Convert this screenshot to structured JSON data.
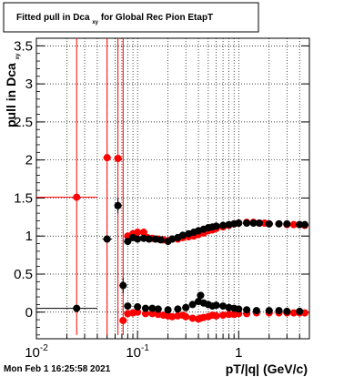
{
  "title_parts": [
    "Fitted pull in Dca",
    "xy",
    " for Global Rec Pion EtapT"
  ],
  "timestamp": "Mon Feb  1 16:25:58 2021",
  "chart_data": {
    "type": "scatter",
    "xlabel": "pT/|q| (GeV/c)",
    "ylabel_parts": [
      "pull in Dca",
      "xy"
    ],
    "xscale": "log",
    "xlim": [
      0.01,
      5.0
    ],
    "ylim": [
      -0.35,
      3.6
    ],
    "x_ticks": [
      {
        "value": 0.01,
        "base": "10",
        "exp": "-2"
      },
      {
        "value": 0.1,
        "base": "10",
        "exp": "-1"
      },
      {
        "value": 1,
        "base": "1",
        "exp": ""
      }
    ],
    "y_ticks": [
      {
        "value": 0,
        "label": "0"
      },
      {
        "value": 0.5,
        "label": "0.5"
      },
      {
        "value": 1,
        "label": "1"
      },
      {
        "value": 1.5,
        "label": "1.5"
      },
      {
        "value": 2,
        "label": "2"
      },
      {
        "value": 2.5,
        "label": "2.5"
      },
      {
        "value": 3,
        "label": "3"
      },
      {
        "value": 3.5,
        "label": "3.5"
      }
    ],
    "grid": true,
    "colors": {
      "red": "#ff0000",
      "black": "#000000"
    },
    "series": [
      {
        "color": "#ff0000",
        "points": [
          [
            0.025,
            1.51
          ],
          [
            0.05,
            2.03
          ],
          [
            0.064,
            2.02
          ],
          [
            0.072,
            -0.11
          ],
          [
            0.08,
            1.0
          ],
          [
            0.09,
            1.03
          ],
          [
            0.1,
            1.05
          ],
          [
            0.115,
            1.05
          ],
          [
            0.125,
            0.98
          ],
          [
            0.14,
            0.97
          ],
          [
            0.16,
            0.96
          ],
          [
            0.18,
            0.95
          ],
          [
            0.2,
            0.94
          ],
          [
            0.22,
            0.96
          ],
          [
            0.25,
            0.96
          ],
          [
            0.28,
            0.98
          ],
          [
            0.32,
            0.99
          ],
          [
            0.36,
            1.0
          ],
          [
            0.4,
            1.02
          ],
          [
            0.45,
            1.04
          ],
          [
            0.5,
            1.07
          ],
          [
            0.55,
            1.08
          ],
          [
            0.6,
            1.1
          ],
          [
            0.7,
            1.12
          ],
          [
            0.8,
            1.14
          ],
          [
            0.9,
            1.16
          ],
          [
            1.0,
            1.17
          ],
          [
            1.2,
            1.18
          ],
          [
            1.4,
            1.18
          ],
          [
            1.6,
            1.17
          ],
          [
            1.8,
            1.17
          ],
          [
            2.0,
            1.16
          ],
          [
            2.5,
            1.16
          ],
          [
            3.0,
            1.15
          ],
          [
            3.5,
            1.15
          ],
          [
            4.0,
            1.15
          ],
          [
            4.5,
            1.14
          ],
          [
            0.08,
            -0.02
          ],
          [
            0.09,
            -0.01
          ],
          [
            0.1,
            0.0
          ],
          [
            0.12,
            -0.02
          ],
          [
            0.14,
            -0.02
          ],
          [
            0.16,
            -0.03
          ],
          [
            0.18,
            -0.04
          ],
          [
            0.2,
            -0.05
          ],
          [
            0.22,
            -0.06
          ],
          [
            0.25,
            -0.05
          ],
          [
            0.28,
            -0.04
          ],
          [
            0.3,
            -0.06
          ],
          [
            0.35,
            -0.08
          ],
          [
            0.4,
            -0.09
          ],
          [
            0.42,
            -0.08
          ],
          [
            0.45,
            -0.07
          ],
          [
            0.5,
            -0.06
          ],
          [
            0.55,
            -0.04
          ],
          [
            0.6,
            -0.05
          ],
          [
            0.7,
            -0.04
          ],
          [
            0.8,
            -0.03
          ],
          [
            0.9,
            -0.03
          ],
          [
            1.0,
            -0.02
          ],
          [
            1.2,
            -0.02
          ],
          [
            1.5,
            -0.01
          ],
          [
            2.0,
            -0.01
          ],
          [
            2.5,
            -0.01
          ],
          [
            3.0,
            -0.01
          ],
          [
            3.5,
            -0.01
          ],
          [
            4.0,
            -0.01
          ],
          [
            4.5,
            -0.01
          ]
        ]
      },
      {
        "color": "#000000",
        "points": [
          [
            0.025,
            0.05
          ],
          [
            0.05,
            0.96
          ],
          [
            0.064,
            1.4
          ],
          [
            0.072,
            0.35
          ],
          [
            0.08,
            0.93
          ],
          [
            0.09,
            0.98
          ],
          [
            0.1,
            0.96
          ],
          [
            0.115,
            0.97
          ],
          [
            0.13,
            0.96
          ],
          [
            0.15,
            0.96
          ],
          [
            0.17,
            0.95
          ],
          [
            0.2,
            0.93
          ],
          [
            0.22,
            0.96
          ],
          [
            0.25,
            0.98
          ],
          [
            0.28,
            1.01
          ],
          [
            0.32,
            1.03
          ],
          [
            0.36,
            1.05
          ],
          [
            0.4,
            1.07
          ],
          [
            0.45,
            1.09
          ],
          [
            0.5,
            1.11
          ],
          [
            0.55,
            1.12
          ],
          [
            0.6,
            1.13
          ],
          [
            0.7,
            1.14
          ],
          [
            0.8,
            1.15
          ],
          [
            0.9,
            1.16
          ],
          [
            1.0,
            1.17
          ],
          [
            1.2,
            1.17
          ],
          [
            1.4,
            1.17
          ],
          [
            1.6,
            1.17
          ],
          [
            2.0,
            1.16
          ],
          [
            2.5,
            1.16
          ],
          [
            3.0,
            1.16
          ],
          [
            4.0,
            1.15
          ],
          [
            4.5,
            1.15
          ],
          [
            0.08,
            0.08
          ],
          [
            0.1,
            0.07
          ],
          [
            0.12,
            0.05
          ],
          [
            0.14,
            0.05
          ],
          [
            0.16,
            0.04
          ],
          [
            0.2,
            0.03
          ],
          [
            0.25,
            0.04
          ],
          [
            0.3,
            0.06
          ],
          [
            0.35,
            0.1
          ],
          [
            0.4,
            0.14
          ],
          [
            0.42,
            0.22
          ],
          [
            0.45,
            0.12
          ],
          [
            0.5,
            0.1
          ],
          [
            0.55,
            0.08
          ],
          [
            0.6,
            0.09
          ],
          [
            0.7,
            0.08
          ],
          [
            0.8,
            0.06
          ],
          [
            0.9,
            0.05
          ],
          [
            1.0,
            0.04
          ],
          [
            1.2,
            0.03
          ],
          [
            1.5,
            0.02
          ],
          [
            2.0,
            0.02
          ],
          [
            2.5,
            0.02
          ],
          [
            3.0,
            0.01
          ],
          [
            4.0,
            0.01
          ]
        ]
      }
    ],
    "error_bars": [
      {
        "x": 0.025,
        "y": 1.51,
        "xlow": 0.01,
        "xhigh": 0.04,
        "ylow": -0.3,
        "yhigh": 3.6,
        "color": "#ff0000"
      },
      {
        "x": 0.025,
        "y": 0.05,
        "xlow": 0.01,
        "xhigh": 0.04,
        "ylow": 0.05,
        "yhigh": 0.05,
        "color": "#000000"
      },
      {
        "x": 0.05,
        "y": 2.03,
        "xlow": 0.046,
        "xhigh": 0.055,
        "ylow": -0.3,
        "yhigh": 3.6,
        "color": "#ff0000"
      },
      {
        "x": 0.05,
        "y": 0.96,
        "xlow": 0.045,
        "xhigh": 0.056,
        "ylow": 0.96,
        "yhigh": 0.96,
        "color": "#000000"
      },
      {
        "x": 0.064,
        "y": 2.02,
        "xlow": 0.06,
        "xhigh": 0.068,
        "ylow": -0.3,
        "yhigh": 3.6,
        "color": "#ff0000"
      },
      {
        "x": 0.072,
        "y": -0.11,
        "xlow": 0.069,
        "xhigh": 0.075,
        "ylow": -0.3,
        "yhigh": 3.6,
        "color": "#ff0000"
      },
      {
        "x": 0.064,
        "y": 1.4,
        "xlow": 0.062,
        "xhigh": 0.066,
        "ylow": 1.3,
        "yhigh": 1.5,
        "color": "#000000"
      },
      {
        "x": 0.072,
        "y": 0.35,
        "xlow": 0.07,
        "xhigh": 0.074,
        "ylow": 0.25,
        "yhigh": 0.45,
        "color": "#000000"
      }
    ]
  }
}
